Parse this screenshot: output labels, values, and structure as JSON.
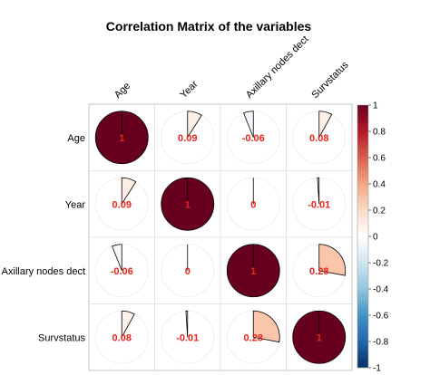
{
  "chart_data": {
    "type": "heatmap",
    "title": "Correlation Matrix of the variables",
    "variables": [
      "Age",
      "Year",
      "Axillary nodes dect",
      "Survstatus"
    ],
    "values": [
      [
        1,
        0.09,
        -0.06,
        0.08
      ],
      [
        0.09,
        1,
        0,
        -0.01
      ],
      [
        -0.06,
        0,
        1,
        0.28
      ],
      [
        0.08,
        -0.01,
        0.28,
        1
      ]
    ],
    "value_labels": [
      [
        "1",
        "0.09",
        "-0.06",
        "0.08"
      ],
      [
        "0.09",
        "1",
        "0",
        "-0.01"
      ],
      [
        "-0.06",
        "0",
        "1",
        "0.28"
      ],
      [
        "0.08",
        "-0.01",
        "0.28",
        "1"
      ]
    ],
    "color_scale": {
      "range": [
        -1,
        1
      ],
      "ticks": [
        "1",
        "0.8",
        "0.6",
        "0.4",
        "0.2",
        "0",
        "-0.2",
        "-0.4",
        "-0.6",
        "-0.8",
        "-1"
      ],
      "colors": [
        "#67001f",
        "#b2182b",
        "#d6604d",
        "#f4a582",
        "#fddbc7",
        "#ffffff",
        "#d1e5f0",
        "#92c5de",
        "#4393c3",
        "#2166ac",
        "#053061"
      ]
    },
    "method": "pie",
    "label_color": "#e8241c",
    "grid": true,
    "legend_placement": "right"
  }
}
